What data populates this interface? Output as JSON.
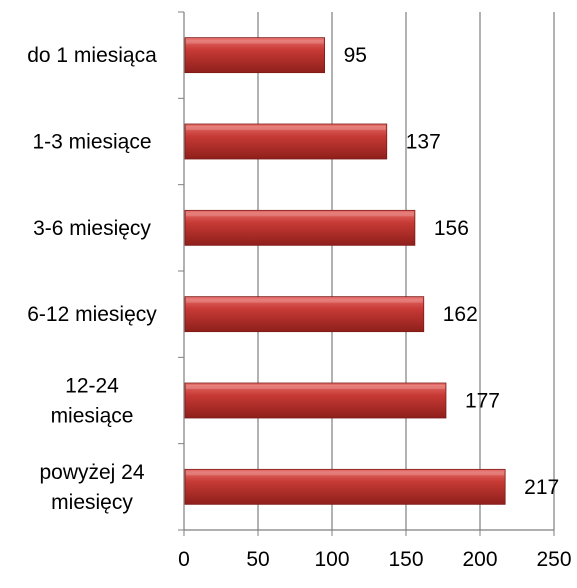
{
  "chart_data": {
    "type": "bar",
    "orientation": "horizontal",
    "title": "",
    "xlabel": "",
    "ylabel": "",
    "categories": [
      [
        "do 1 miesiąca"
      ],
      [
        "1-3 miesiące"
      ],
      [
        "3-6 miesięcy"
      ],
      [
        "6-12 miesięcy"
      ],
      [
        "12-24",
        "miesiące"
      ],
      [
        "powyżej 24",
        "miesięcy"
      ]
    ],
    "values": [
      95,
      137,
      156,
      162,
      177,
      217
    ],
    "xlim": [
      0,
      250
    ],
    "x_ticks": [
      0,
      50,
      100,
      150,
      200,
      250
    ],
    "grid": "vertical",
    "legend": "none",
    "data_labels": true,
    "colors": {
      "bar_light": "#e8716d",
      "bar_mid": "#c73a35",
      "bar_dark": "#8e1f1b",
      "bar_edge": "#7a1a17",
      "gridline": "#7f7f7f",
      "axis": "#7f7f7f"
    }
  }
}
